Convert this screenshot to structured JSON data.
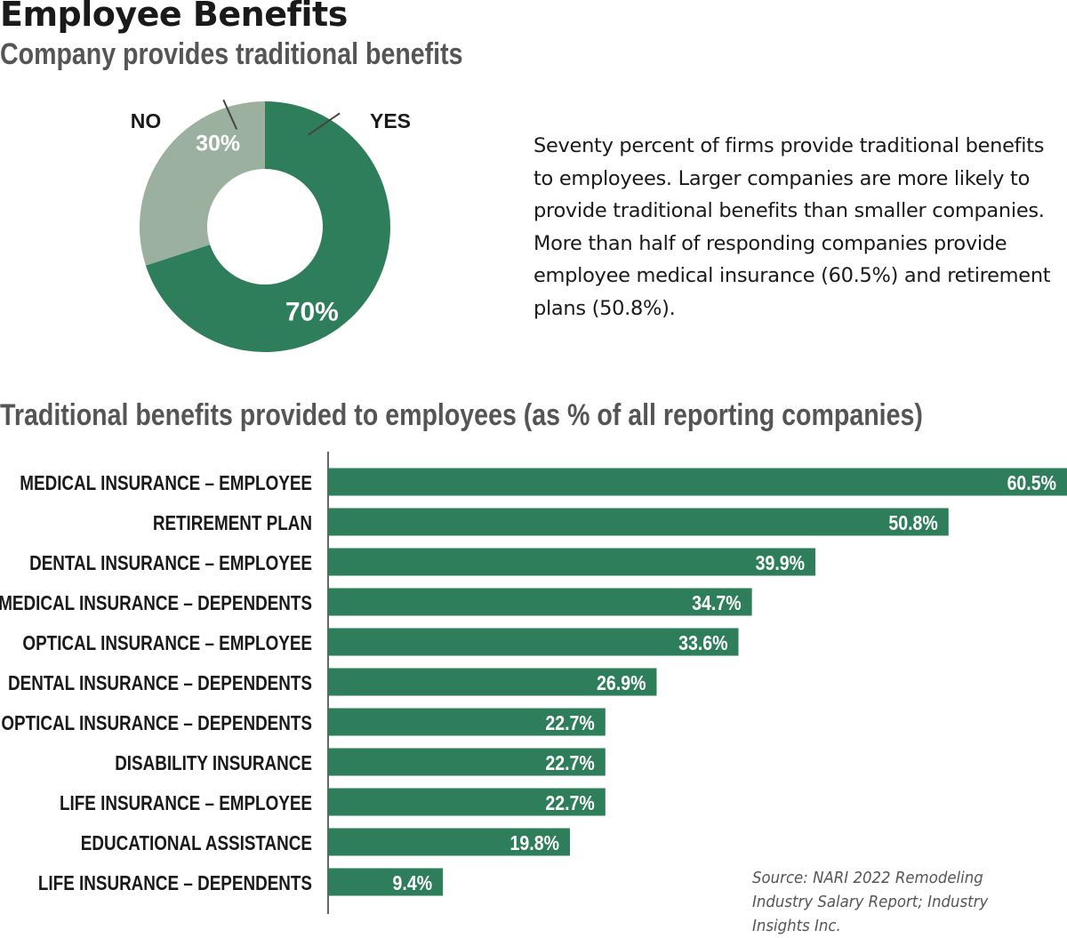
{
  "title": "Employee Benefits",
  "donut_section": {
    "subtitle": "Company provides traditional benefits",
    "summary": "Seventy percent of firms provide traditional benefits to employees. Larger companies are more likely to provide traditional benefits than smaller companies. More than half of responding companies provide employee medical insurance (60.5%) and retirement plans (50.8%)."
  },
  "bar_section": {
    "subtitle": "Traditional benefits provided to employees (as % of all reporting companies)"
  },
  "source": "Source: NARI 2022 Remodeling Industry Salary Report; Industry Insights Inc.",
  "colors": {
    "primary": "#2e7d5b",
    "secondary": "#9bb09f",
    "text": "#1a1a1a",
    "muted": "#555555"
  },
  "chart_data": [
    {
      "type": "pie",
      "donut": true,
      "title": "Company provides traditional benefits",
      "slices": [
        {
          "label": "YES",
          "value": 70,
          "value_label": "70%",
          "color": "#2e7d5b"
        },
        {
          "label": "NO",
          "value": 30,
          "value_label": "30%",
          "color": "#9bb09f"
        }
      ]
    },
    {
      "type": "bar",
      "orientation": "horizontal",
      "title": "Traditional benefits provided to employees (as % of all reporting companies)",
      "xlim": [
        0,
        60.5
      ],
      "grid": false,
      "categories": [
        "MEDICAL INSURANCE – EMPLOYEE",
        "RETIREMENT PLAN",
        "DENTAL INSURANCE – EMPLOYEE",
        "MEDICAL INSURANCE – DEPENDENTS",
        "OPTICAL INSURANCE – EMPLOYEE",
        "DENTAL INSURANCE – DEPENDENTS",
        "OPTICAL INSURANCE – DEPENDENTS",
        "DISABILITY INSURANCE",
        "LIFE INSURANCE – EMPLOYEE",
        "EDUCATIONAL ASSISTANCE",
        "LIFE INSURANCE – DEPENDENTS"
      ],
      "values": [
        60.5,
        50.8,
        39.9,
        34.7,
        33.6,
        26.9,
        22.7,
        22.7,
        22.7,
        19.8,
        9.4
      ],
      "value_labels": [
        "60.5%",
        "50.8%",
        "39.9%",
        "34.7%",
        "33.6%",
        "26.9%",
        "22.7%",
        "22.7%",
        "22.7%",
        "19.8%",
        "9.4%"
      ]
    }
  ]
}
